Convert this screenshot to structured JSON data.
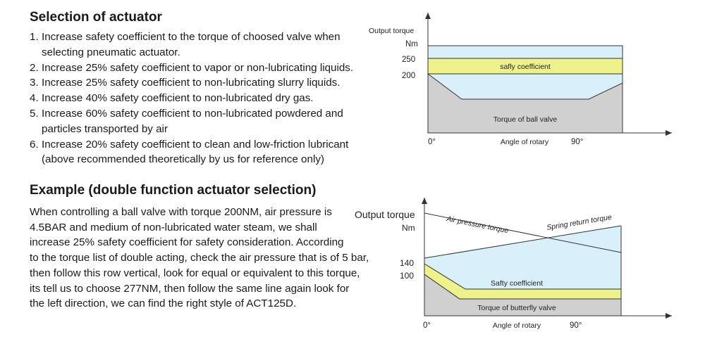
{
  "section1": {
    "title": "Selection of actuator",
    "items": [
      {
        "num": "1.",
        "lines": [
          "Increase safety coefficient to the torque of choosed valve when",
          "selecting pneumatic actuator."
        ]
      },
      {
        "num": "2.",
        "lines": [
          "Increase 25% safety coefficient to vapor or non-lubricating liquids."
        ]
      },
      {
        "num": "3.",
        "lines": [
          "Increase 25% safety coefficient to non-lubricating slurry liquids."
        ]
      },
      {
        "num": "4.",
        "lines": [
          "Increase 40% safety coefficient to non-lubricated dry gas."
        ]
      },
      {
        "num": "5.",
        "lines": [
          "Increase 60% safety coefficient to non-lubricated powdered and",
          "particles transported by air"
        ]
      },
      {
        "num": "6.",
        "lines": [
          "Increase 20% safety coefficient to clean and low-friction lubricant",
          "(above recommended theoretically by us for reference only)"
        ]
      }
    ]
  },
  "section2": {
    "title": "Example (double function actuator selection)",
    "lines": [
      "When controlling a ball valve with torque 200NM, air pressure is",
      "4.5BAR and medium of  non-lubricated water steam, we shall",
      "increase 25% safety coefficient for safety consideration. According",
      "to the torque list of double acting, check the air pressure that is of 5 bar,",
      "then follow this row vertical, look for equal or equivalent to this torque,",
      "its tell us to choose 277NM, then follow the same line again look for",
      "the left direction, we can find the right style of  ACT125D."
    ]
  },
  "diagram1": {
    "ylabel": "Output torque",
    "unit": "Nm",
    "tick_250": "250",
    "tick_200": "200",
    "band_label": "safly coefficient",
    "valve_label": "Torque of ball valve",
    "x_start": "0°",
    "xlabel": "Angle of rotary",
    "x_end": "90°",
    "colors": {
      "band": "#eef28a",
      "sky": "#d9effa",
      "valve": "#d0d0d0"
    }
  },
  "diagram2": {
    "ylabel": "Output torque",
    "unit": "Nm",
    "tick_140": "140",
    "tick_100": "100",
    "air_label": "Air pressure torque",
    "spring_label": "Spring return torque",
    "band_label": "Safty coefficient",
    "valve_label": "Torque of butterfly valve",
    "x_start": "0°",
    "xlabel": "Angle of rotary",
    "x_end": "90°",
    "colors": {
      "band": "#eef28a",
      "sky": "#d9effa",
      "valve": "#d0d0d0"
    }
  }
}
